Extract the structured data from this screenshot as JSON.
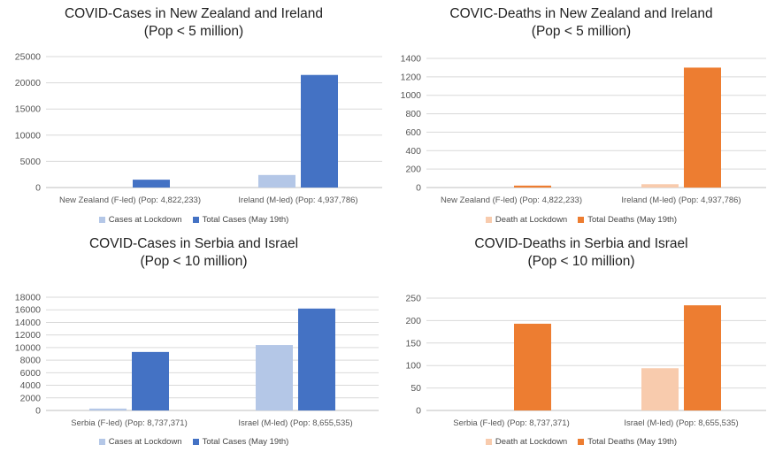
{
  "chart_data": [
    {
      "type": "bar",
      "title": "COVID-Cases in New Zealand and Ireland",
      "subtitle": "(Pop < 5 million)",
      "categories": [
        "New Zealand (F-led) (Pop: 4,822,233)",
        "Ireland (M-led) (Pop: 4,937,786)"
      ],
      "series": [
        {
          "name": "Cases at Lockdown",
          "values": [
            0,
            2400
          ],
          "color": "#B4C7E7"
        },
        {
          "name": "Total Cases (May 19th)",
          "values": [
            1500,
            21500
          ],
          "color": "#4472C4"
        }
      ],
      "ylim": [
        0,
        25000
      ],
      "yticks": [
        "0",
        "5000",
        "10000",
        "15000",
        "20000",
        "25000"
      ],
      "grid": true,
      "legend": "bottom"
    },
    {
      "type": "bar",
      "title": "COVIC-Deaths in New Zealand and Ireland",
      "subtitle": "(Pop < 5 million)",
      "categories": [
        "New Zealand (F-led) (Pop: 4,822,233)",
        "Ireland (M-led) (Pop: 4,937,786)"
      ],
      "series": [
        {
          "name": "Death at Lockdown",
          "values": [
            0,
            36
          ],
          "color": "#F8CBAD"
        },
        {
          "name": "Total Deaths (May 19th)",
          "values": [
            21,
            1300
          ],
          "color": "#ED7D31"
        }
      ],
      "ylim": [
        0,
        1400
      ],
      "yticks": [
        "0",
        "200",
        "400",
        "600",
        "800",
        "1000",
        "1200",
        "1400"
      ],
      "grid": true,
      "legend": "bottom"
    },
    {
      "type": "bar",
      "title": "COVID-Cases in Serbia and Israel",
      "subtitle": "(Pop < 10 million)",
      "categories": [
        "Serbia (F-led) (Pop: 8,737,371)",
        "Israel (M-led) (Pop: 8,655,535)"
      ],
      "series": [
        {
          "name": "Cases at Lockdown",
          "values": [
            300,
            10400
          ],
          "color": "#B4C7E7"
        },
        {
          "name": "Total Cases (May 19th)",
          "values": [
            9300,
            16200
          ],
          "color": "#4472C4"
        }
      ],
      "ylim": [
        0,
        18000
      ],
      "yticks": [
        "0",
        "2000",
        "4000",
        "6000",
        "8000",
        "10000",
        "12000",
        "14000",
        "16000",
        "18000"
      ],
      "grid": true,
      "legend": "bottom"
    },
    {
      "type": "bar",
      "title": "COVID-Deaths in Serbia and Israel",
      "subtitle": "(Pop < 10 million)",
      "categories": [
        "Serbia (F-led) (Pop: 8,737,371)",
        "Israel (M-led) (Pop: 8,655,535)"
      ],
      "series": [
        {
          "name": "Death at Lockdown",
          "values": [
            0,
            94
          ],
          "color": "#F8CBAD"
        },
        {
          "name": "Total Deaths (May 19th)",
          "values": [
            193,
            234
          ],
          "color": "#ED7D31"
        }
      ],
      "ylim": [
        0,
        250
      ],
      "yticks": [
        "0",
        "50",
        "100",
        "150",
        "200",
        "250"
      ],
      "grid": true,
      "legend": "bottom"
    }
  ]
}
